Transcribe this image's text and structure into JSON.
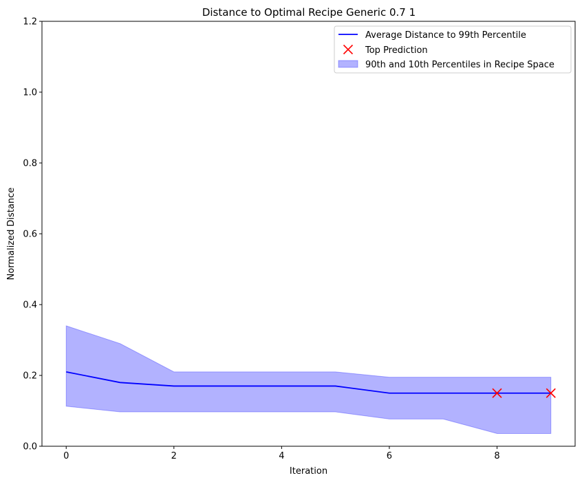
{
  "chart_data": {
    "type": "line",
    "title": "Distance to Optimal Recipe Generic 0.7 1",
    "xlabel": "Iteration",
    "ylabel": "Normalized Distance",
    "xlim": [
      -0.45,
      9.45
    ],
    "ylim": [
      0,
      1.2
    ],
    "x_ticks": [
      "0",
      "2",
      "4",
      "6",
      "8"
    ],
    "x_tick_values": [
      0,
      2,
      4,
      6,
      8
    ],
    "y_ticks": [
      "0.0",
      "0.2",
      "0.4",
      "0.6",
      "0.8",
      "1.0",
      "1.2"
    ],
    "y_tick_values": [
      0,
      0.2,
      0.4,
      0.6,
      0.8,
      1.0,
      1.2
    ],
    "grid": false,
    "legend_position": "top-right",
    "x": [
      0,
      1,
      2,
      3,
      4,
      5,
      6,
      7,
      8,
      9
    ],
    "series": [
      {
        "name": "Average Distance to 99th Percentile",
        "kind": "line",
        "color": "#0000ff",
        "values": [
          0.21,
          0.18,
          0.17,
          0.17,
          0.17,
          0.17,
          0.15,
          0.15,
          0.15,
          0.15
        ]
      },
      {
        "name": "90th and 10th Percentiles in Recipe Space",
        "kind": "band",
        "color": "#0000ff",
        "upper": [
          0.34,
          0.29,
          0.21,
          0.21,
          0.21,
          0.21,
          0.195,
          0.195,
          0.195,
          0.195
        ],
        "lower": [
          0.113,
          0.097,
          0.097,
          0.097,
          0.097,
          0.097,
          0.077,
          0.077,
          0.036,
          0.036
        ]
      },
      {
        "name": "Top Prediction",
        "kind": "scatter",
        "color": "#ff0000",
        "x": [
          8,
          9
        ],
        "values": [
          0.15,
          0.15
        ]
      }
    ]
  }
}
